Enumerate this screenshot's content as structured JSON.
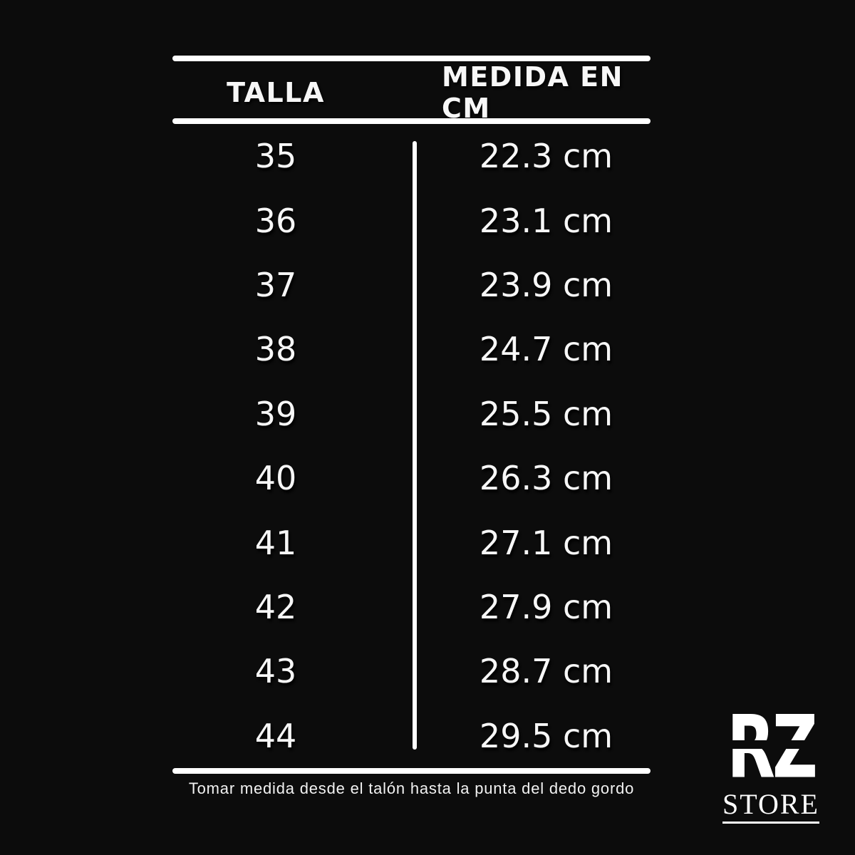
{
  "colors": {
    "background": "#0c0c0c",
    "text": "#f7f7f7",
    "line": "#ffffff"
  },
  "chart_data": {
    "type": "table",
    "title": "",
    "columns": [
      "TALLA",
      "MEDIDA EN CM"
    ],
    "rows": [
      [
        "35",
        "22.3 cm"
      ],
      [
        "36",
        "23.1 cm"
      ],
      [
        "37",
        "23.9 cm"
      ],
      [
        "38",
        "24.7 cm"
      ],
      [
        "39",
        "25.5 cm"
      ],
      [
        "40",
        "26.3 cm"
      ],
      [
        "41",
        "27.1 cm"
      ],
      [
        "42",
        "27.9 cm"
      ],
      [
        "43",
        "28.7 cm"
      ],
      [
        "44",
        "29.5 cm"
      ]
    ],
    "sizes_eu": [
      35,
      36,
      37,
      38,
      39,
      40,
      41,
      42,
      43,
      44
    ],
    "lengths_cm": [
      22.3,
      23.1,
      23.9,
      24.7,
      25.5,
      26.3,
      27.1,
      27.9,
      28.7,
      29.5
    ]
  },
  "footer": {
    "note": "Tomar medida desde el talón hasta la punta del dedo gordo"
  },
  "logo": {
    "monogram": "RZ",
    "store": "STORE"
  }
}
